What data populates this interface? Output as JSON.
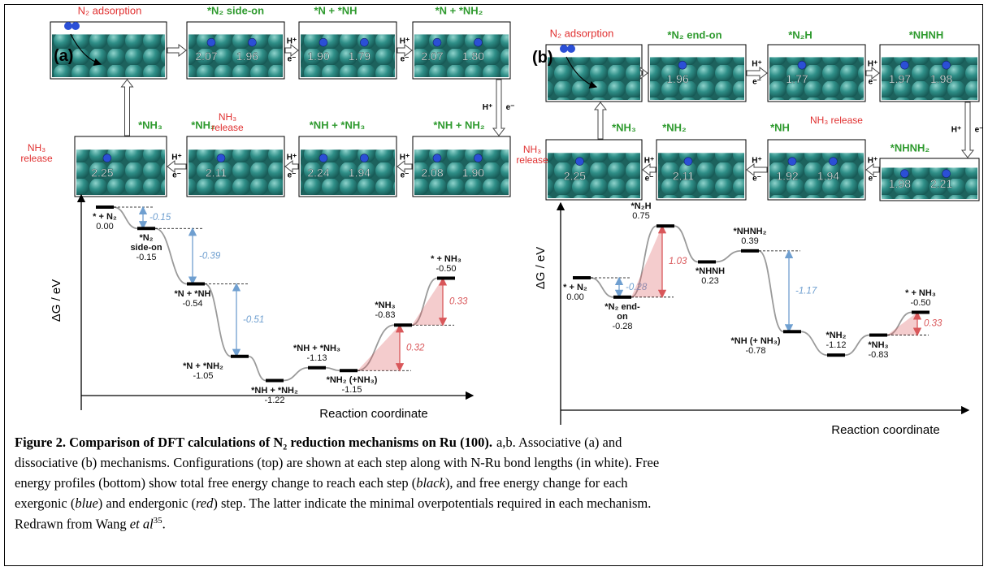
{
  "proton": "H⁺",
  "electron": "e⁻",
  "panels": [
    {
      "label": "(a)",
      "adsorption_label": "N₂ adsorption",
      "release_label": "NH₃ release",
      "configurations": [
        {
          "bonds": []
        },
        {
          "label": "*N₂ side-on",
          "bonds": [
            "2.07",
            "1.96"
          ]
        },
        {
          "label": "*N + *NH",
          "bonds": [
            "1.90",
            "1.79"
          ]
        },
        {
          "label": "*N + *NH₂",
          "bonds": [
            "2.07",
            "1.80"
          ]
        },
        {
          "label": "*NH + NH₂",
          "bonds": [
            "2.08",
            "1.90"
          ]
        },
        {
          "label": "*NH + *NH₃",
          "bonds": [
            "2.24",
            "1.94"
          ]
        },
        {
          "label": "*NH₂",
          "bonds": [
            "2.11"
          ]
        },
        {
          "label": "*NH₃",
          "bonds": [
            "2.25"
          ]
        }
      ],
      "energy_profile": {
        "y_label": "ΔG / eV",
        "x_label": "Reaction coordinate",
        "exergonic_color": "#6f9fd0",
        "endergonic_color": "#d9575a",
        "levels": [
          {
            "label": "* + N₂",
            "value": 0,
            "value_label": "0.00"
          },
          {
            "label": "*N₂ side-on",
            "value": -0.15,
            "step": -0.15
          },
          {
            "label": "*N + *NH",
            "value": -0.54,
            "step": -0.39
          },
          {
            "label": "*N + *NH₂",
            "value": -1.05,
            "step": -0.51
          },
          {
            "label": "*NH + *NH₂",
            "value": -1.22
          },
          {
            "label": "*NH + *NH₃",
            "value": -1.13
          },
          {
            "label": "*NH₂ (+NH₃)",
            "value": -1.15
          },
          {
            "label": "*NH₃",
            "value": -0.83,
            "step": 0.32
          },
          {
            "label": "* + NH₃",
            "value": -0.5,
            "value_label": "-0.50",
            "step": 0.33
          }
        ]
      }
    },
    {
      "label": "(b)",
      "adsorption_label": "N₂ adsorption",
      "release_label": "NH₃ release",
      "configurations": [
        {
          "bonds": []
        },
        {
          "label": "*N₂ end-on",
          "bonds": [
            "1.96"
          ]
        },
        {
          "label": "*N₂H",
          "bonds": [
            "1.77"
          ]
        },
        {
          "label": "*NHNH",
          "bonds": [
            "1.97",
            "1.98"
          ]
        },
        {
          "label": "*NHNH₂",
          "bonds": [
            "1.98",
            "2.21"
          ]
        },
        {
          "label": "*NH",
          "bonds": [
            "1.92",
            "1.94"
          ]
        },
        {
          "label": "*NH₂",
          "bonds": [
            "2.11"
          ]
        },
        {
          "label": "*NH₃",
          "bonds": [
            "2.25"
          ]
        }
      ],
      "energy_profile": {
        "y_label": "ΔG / eV",
        "x_label": "Reaction coordinate",
        "exergonic_color": "#6f9fd0",
        "endergonic_color": "#d9575a",
        "levels": [
          {
            "label": "* + N₂",
            "value": 0,
            "value_label": "0.00"
          },
          {
            "label": "*N₂ end-on",
            "value": -0.28,
            "step": -0.28
          },
          {
            "label": "*N₂H",
            "value": 0.75,
            "step": 1.03
          },
          {
            "label": "*NHNH",
            "value": 0.23
          },
          {
            "label": "*NHNH₂",
            "value": 0.39
          },
          {
            "label": "*NH (+ NH₃)",
            "value": -0.78,
            "step": -1.17
          },
          {
            "label": "*NH₂",
            "value": -1.12
          },
          {
            "label": "*NH₃",
            "value": -0.83
          },
          {
            "label": "* + NH₃",
            "value": -0.5,
            "value_label": "-0.50",
            "step": 0.33
          }
        ]
      }
    }
  ],
  "caption": {
    "lines": [
      [
        {
          "text": "Figure 2. Comparison of DFT calculations of N₂ reduction mechanisms on Ru (100).",
          "style": "bold"
        },
        {
          "text": "a,b. Associative (a) and",
          "style": "normal"
        }
      ],
      [
        {
          "text": "dissociative (b) mechanisms. Configurations (top) are shown at each step along with N-Ru bond lengths (in white). Free",
          "style": "normal"
        }
      ],
      [
        {
          "text": "energy profiles (bottom) show total free energy change to reach each step (",
          "style": "normal"
        },
        {
          "text": "black",
          "style": "italic"
        },
        {
          "text": "), and free energy change for each",
          "style": "normal"
        }
      ],
      [
        {
          "text": "exergonic (",
          "style": "normal"
        },
        {
          "text": "blue",
          "style": "italic"
        },
        {
          "text": ") and endergonic (",
          "style": "normal"
        },
        {
          "text": "red",
          "style": "italic"
        },
        {
          "text": ") step. The latter indicate the minimal overpotentials required in each mechanism.",
          "style": "normal"
        }
      ],
      [
        {
          "text": "Redrawn from Wang ",
          "style": "normal"
        },
        {
          "text": "et al",
          "style": "italic"
        },
        {
          "text": "35",
          "style": "superscript"
        },
        {
          "text": ".",
          "style": "normal"
        }
      ]
    ]
  }
}
